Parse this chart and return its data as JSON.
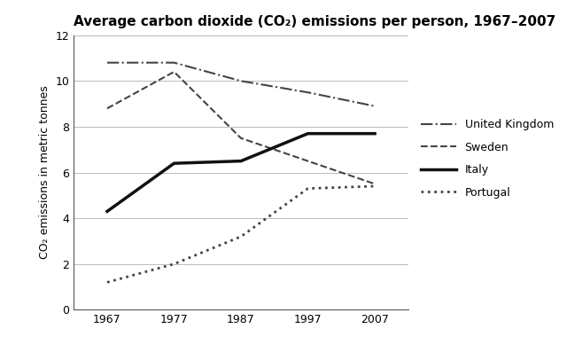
{
  "title": "Average carbon dioxide (CO₂) emissions per person, 1967–2007",
  "ylabel": "CO₂ emissions in metric tonnes",
  "years": [
    1967,
    1977,
    1987,
    1997,
    2007
  ],
  "series": {
    "United Kingdom": [
      10.8,
      10.8,
      10.0,
      9.5,
      8.9
    ],
    "Sweden": [
      8.8,
      10.4,
      7.5,
      6.5,
      5.5
    ],
    "Italy": [
      4.3,
      6.4,
      6.5,
      7.7,
      7.7
    ],
    "Portugal": [
      1.2,
      2.0,
      3.2,
      5.3,
      5.4
    ]
  },
  "line_styles": {
    "United Kingdom": {
      "linestyle": "-.",
      "linewidth": 1.5,
      "color": "#444444"
    },
    "Sweden": {
      "linestyle": "--",
      "linewidth": 1.5,
      "color": "#444444"
    },
    "Italy": {
      "linestyle": "-",
      "linewidth": 2.5,
      "color": "#111111"
    },
    "Portugal": {
      "linestyle": ":",
      "linewidth": 2.0,
      "color": "#444444"
    }
  },
  "ylim": [
    0,
    12
  ],
  "yticks": [
    0,
    2,
    4,
    6,
    8,
    10,
    12
  ],
  "xticks": [
    1967,
    1977,
    1987,
    1997,
    2007
  ],
  "legend_order": [
    "United Kingdom",
    "Sweden",
    "Italy",
    "Portugal"
  ],
  "background_color": "#ffffff",
  "grid_color": "#bbbbbb",
  "title_fontsize": 11,
  "label_fontsize": 9,
  "tick_fontsize": 9,
  "legend_fontsize": 9
}
